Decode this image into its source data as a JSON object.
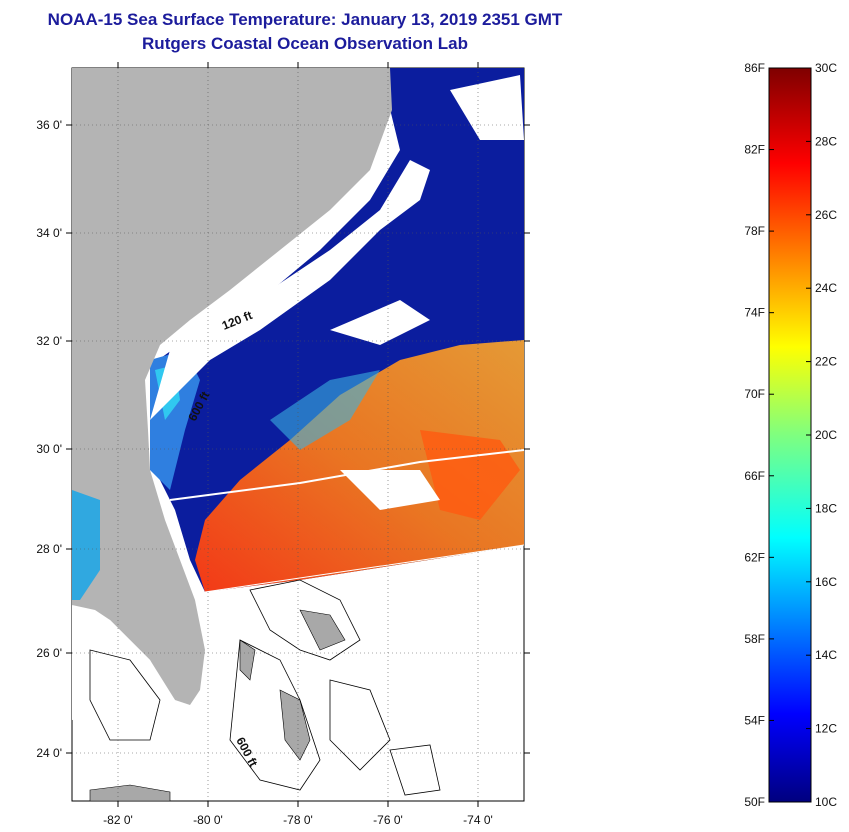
{
  "header": {
    "title": "NOAA-15 Sea Surface Temperature:  January 13, 2019 2351 GMT",
    "subtitle": "Rutgers Coastal Ocean Observation Lab"
  },
  "map": {
    "lat_range": [
      23,
      37.2
    ],
    "lon_range": [
      -83,
      -73
    ],
    "lat_ticks": [
      "36 0'",
      "34 0'",
      "32 0'",
      "30 0'",
      "28 0'",
      "26 0'",
      "24 0'"
    ],
    "lat_values": [
      36,
      34,
      32,
      30,
      28,
      26,
      24
    ],
    "lon_ticks": [
      "-82 0'",
      "-80 0'",
      "-78 0'",
      "-76 0'",
      "-74 0'"
    ],
    "lon_values": [
      -82,
      -80,
      -78,
      -76,
      -74
    ],
    "contour_labels": [
      {
        "text": "120 ft",
        "lon": -79.6,
        "lat": 32.3
      },
      {
        "text": "600 ft",
        "lon": -80.5,
        "lat": 30.6
      },
      {
        "text": "600 ft",
        "lon": -79.6,
        "lat": 23.9
      }
    ],
    "colors": {
      "land": "#b4b4b4",
      "cloud": "#ffffff",
      "cold": "#0a1a9a",
      "warm": "#f06a1a"
    }
  },
  "colorbar": {
    "fahrenheit": [
      "86F",
      "82F",
      "78F",
      "74F",
      "70F",
      "66F",
      "62F",
      "58F",
      "54F",
      "50F"
    ],
    "celsius": [
      "30C",
      "28C",
      "26C",
      "24C",
      "22C",
      "20C",
      "18C",
      "16C",
      "14C",
      "12C",
      "10C"
    ],
    "range_c": [
      10,
      30
    ],
    "colormap": "jet"
  }
}
